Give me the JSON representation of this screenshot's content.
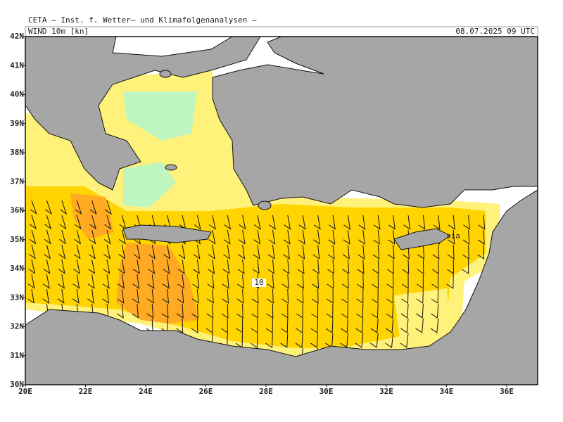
{
  "header": {
    "title": "CETA — Inst. f. Wetter— und Klimafolgenanalysen —",
    "field": "WIND 10m [kn]",
    "valid_time": "08.07.2025 09 UTC"
  },
  "axes": {
    "lat_labels": [
      "42N",
      "41N",
      "40N",
      "39N",
      "38N",
      "37N",
      "36N",
      "35N",
      "34N",
      "33N",
      "32N",
      "31N",
      "30N"
    ],
    "lon_labels": [
      "20E",
      "22E",
      "24E",
      "26E",
      "28E",
      "30E",
      "32E",
      "34E",
      "36E"
    ]
  },
  "annotations": {
    "contour_label": "10",
    "place_label": "sia"
  }
}
